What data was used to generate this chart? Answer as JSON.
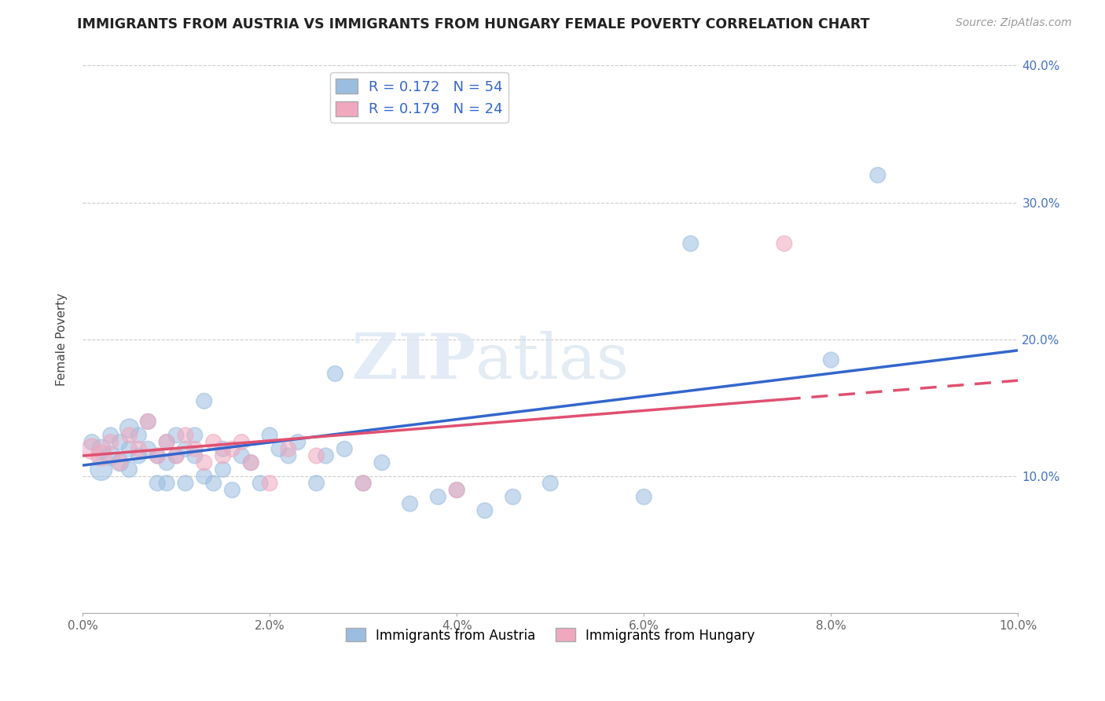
{
  "title": "IMMIGRANTS FROM AUSTRIA VS IMMIGRANTS FROM HUNGARY FEMALE POVERTY CORRELATION CHART",
  "source": "Source: ZipAtlas.com",
  "ylabel": "Female Poverty",
  "xlim": [
    0.0,
    0.1
  ],
  "ylim": [
    0.0,
    0.4
  ],
  "xticks": [
    0.0,
    0.02,
    0.04,
    0.06,
    0.08,
    0.1
  ],
  "yticks": [
    0.0,
    0.1,
    0.2,
    0.3,
    0.4
  ],
  "xticklabels": [
    "0.0%",
    "2.0%",
    "4.0%",
    "6.0%",
    "8.0%",
    "10.0%"
  ],
  "yticklabels_right": [
    "",
    "10.0%",
    "20.0%",
    "30.0%",
    "40.0%"
  ],
  "austria_R": 0.172,
  "austria_N": 54,
  "hungary_R": 0.179,
  "hungary_N": 24,
  "austria_color": "#9bbde0",
  "hungary_color": "#f0a8be",
  "austria_line_color": "#3366cc",
  "hungary_line_color": "#e05070",
  "watermark_zip": "ZIP",
  "watermark_atlas": "atlas",
  "legend_austria": "Immigrants from Austria",
  "legend_hungary": "Immigrants from Hungary",
  "austria_x": [
    0.001,
    0.002,
    0.002,
    0.003,
    0.003,
    0.004,
    0.004,
    0.005,
    0.005,
    0.005,
    0.006,
    0.006,
    0.007,
    0.007,
    0.008,
    0.008,
    0.009,
    0.009,
    0.009,
    0.01,
    0.01,
    0.011,
    0.011,
    0.012,
    0.012,
    0.013,
    0.013,
    0.014,
    0.015,
    0.015,
    0.016,
    0.017,
    0.018,
    0.019,
    0.02,
    0.021,
    0.022,
    0.023,
    0.025,
    0.026,
    0.027,
    0.028,
    0.03,
    0.032,
    0.035,
    0.038,
    0.04,
    0.043,
    0.046,
    0.05,
    0.06,
    0.065,
    0.08,
    0.085
  ],
  "austria_y": [
    0.125,
    0.12,
    0.105,
    0.13,
    0.115,
    0.125,
    0.11,
    0.135,
    0.12,
    0.105,
    0.13,
    0.115,
    0.14,
    0.12,
    0.095,
    0.115,
    0.125,
    0.11,
    0.095,
    0.13,
    0.115,
    0.095,
    0.12,
    0.13,
    0.115,
    0.155,
    0.1,
    0.095,
    0.12,
    0.105,
    0.09,
    0.115,
    0.11,
    0.095,
    0.13,
    0.12,
    0.115,
    0.125,
    0.095,
    0.115,
    0.175,
    0.12,
    0.095,
    0.11,
    0.08,
    0.085,
    0.09,
    0.075,
    0.085,
    0.095,
    0.085,
    0.27,
    0.185,
    0.32
  ],
  "austria_size": [
    200,
    300,
    400,
    200,
    300,
    200,
    250,
    300,
    200,
    200,
    200,
    200,
    200,
    200,
    200,
    200,
    200,
    200,
    200,
    200,
    200,
    200,
    200,
    200,
    200,
    200,
    200,
    200,
    200,
    200,
    200,
    200,
    200,
    200,
    200,
    200,
    200,
    200,
    200,
    200,
    200,
    200,
    200,
    200,
    200,
    200,
    200,
    200,
    200,
    200,
    200,
    200,
    200,
    200
  ],
  "hungary_x": [
    0.001,
    0.002,
    0.003,
    0.004,
    0.005,
    0.006,
    0.007,
    0.008,
    0.009,
    0.01,
    0.011,
    0.012,
    0.013,
    0.014,
    0.015,
    0.016,
    0.017,
    0.018,
    0.02,
    0.022,
    0.025,
    0.03,
    0.04,
    0.075
  ],
  "hungary_y": [
    0.12,
    0.115,
    0.125,
    0.11,
    0.13,
    0.12,
    0.14,
    0.115,
    0.125,
    0.115,
    0.13,
    0.12,
    0.11,
    0.125,
    0.115,
    0.12,
    0.125,
    0.11,
    0.095,
    0.12,
    0.115,
    0.095,
    0.09,
    0.27
  ],
  "hungary_size": [
    350,
    350,
    200,
    200,
    200,
    200,
    200,
    200,
    200,
    200,
    200,
    200,
    200,
    200,
    200,
    200,
    200,
    200,
    200,
    200,
    200,
    200,
    200,
    200
  ]
}
